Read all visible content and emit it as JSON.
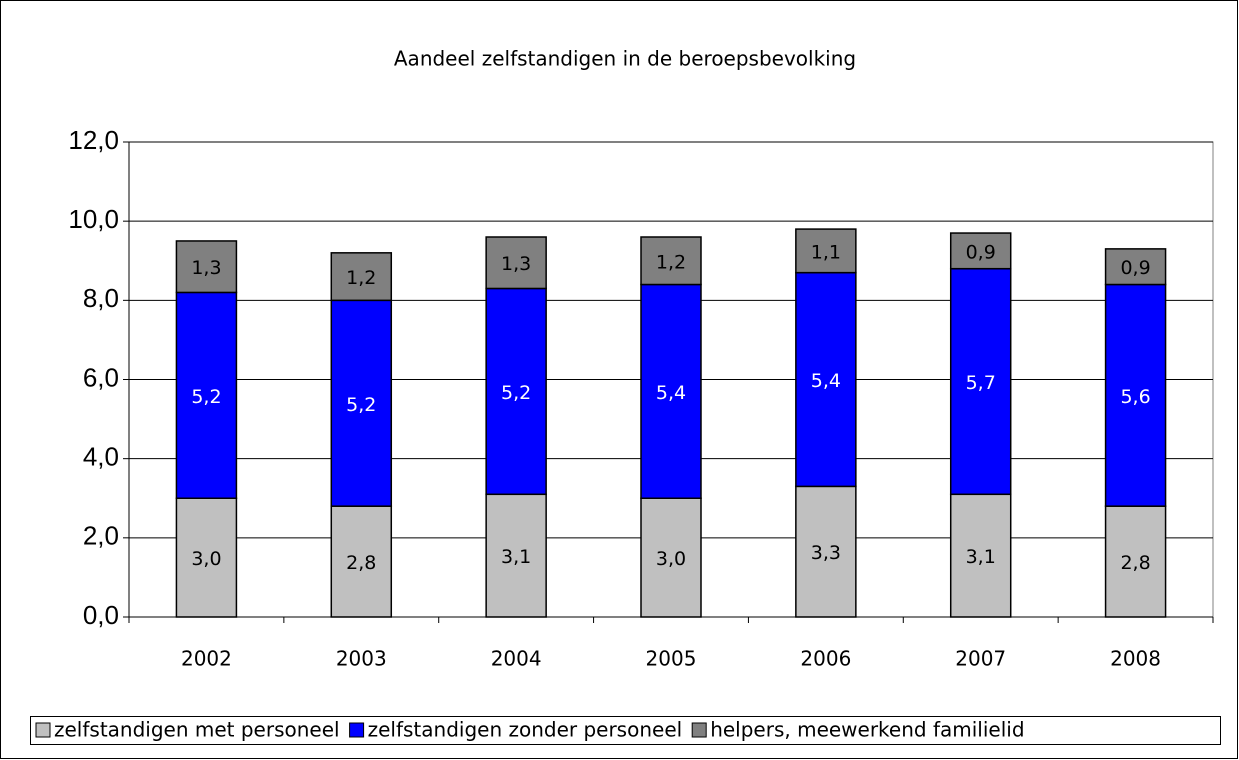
{
  "chart_data": {
    "type": "stacked_bar",
    "title": "Aandeel zelfstandigen in de beroepsbevolking",
    "categories": [
      "2002",
      "2003",
      "2004",
      "2005",
      "2006",
      "2007",
      "2008"
    ],
    "series": [
      {
        "name": "zelfstandigen met personeel",
        "color": "#c0c0c0",
        "values": [
          3.0,
          2.8,
          3.1,
          3.0,
          3.3,
          3.1,
          2.8
        ],
        "value_labels": [
          "3,0",
          "2,8",
          "3,1",
          "3,0",
          "3,3",
          "3,1",
          "2,8"
        ]
      },
      {
        "name": "zelfstandigen zonder personeel",
        "color": "#0000ff",
        "values": [
          5.2,
          5.2,
          5.2,
          5.4,
          5.4,
          5.7,
          5.6
        ],
        "value_labels": [
          "5,2",
          "5,2",
          "5,2",
          "5,4",
          "5,4",
          "5,7",
          "5,6"
        ]
      },
      {
        "name": "helpers, meewerkend familielid",
        "color": "#808080",
        "values": [
          1.3,
          1.2,
          1.3,
          1.2,
          1.1,
          0.9,
          0.9
        ],
        "value_labels": [
          "1,3",
          "1,2",
          "1,3",
          "1,2",
          "1,1",
          "0,9",
          "0,9"
        ]
      }
    ],
    "ylim": [
      0,
      12
    ],
    "yticks": [
      {
        "value": 0,
        "label": "0,0"
      },
      {
        "value": 2,
        "label": "2,0"
      },
      {
        "value": 4,
        "label": "4,0"
      },
      {
        "value": 6,
        "label": "6,0"
      },
      {
        "value": 8,
        "label": "8,0"
      },
      {
        "value": 10,
        "label": "10,0"
      },
      {
        "value": 12,
        "label": "12,0"
      }
    ],
    "grid": true,
    "legend": "bottom"
  }
}
